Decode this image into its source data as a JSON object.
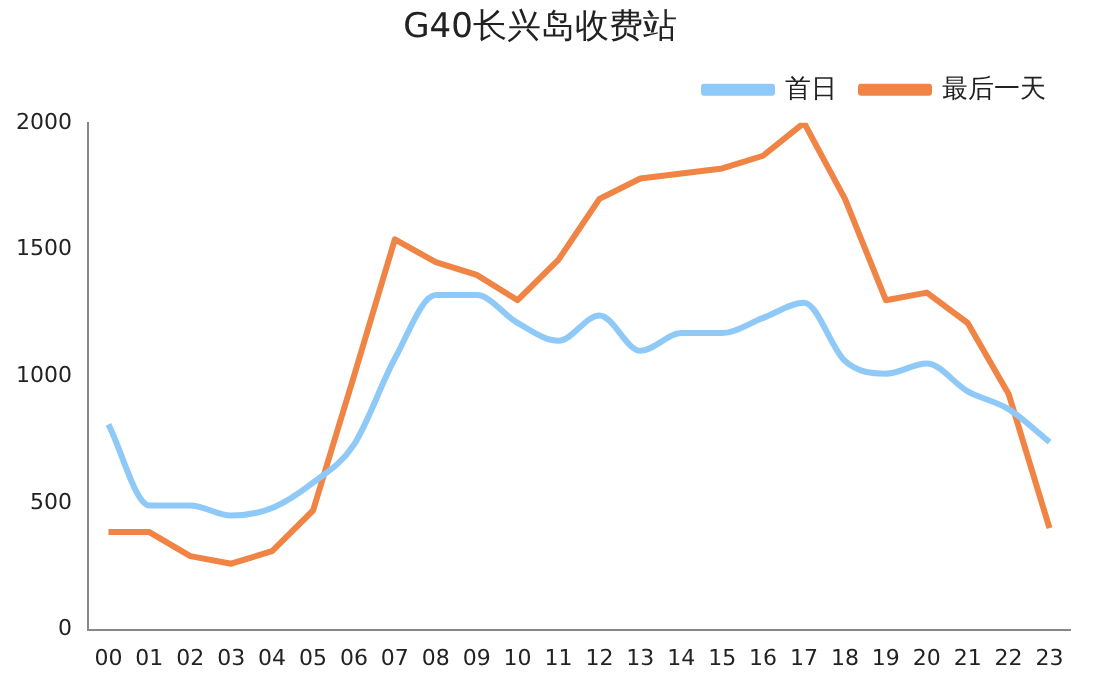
{
  "chart_data": {
    "type": "line",
    "title": "G40长兴岛收费站",
    "categories": [
      "00",
      "01",
      "02",
      "03",
      "04",
      "05",
      "06",
      "07",
      "08",
      "09",
      "10",
      "11",
      "12",
      "13",
      "14",
      "15",
      "16",
      "17",
      "18",
      "19",
      "20",
      "21",
      "22",
      "23"
    ],
    "series": [
      {
        "name": "首日",
        "color": "#8ec9f7",
        "values": [
          810,
          490,
          490,
          450,
          480,
          580,
          730,
          1070,
          1320,
          1320,
          1210,
          1140,
          1240,
          1100,
          1170,
          1170,
          1230,
          1290,
          1060,
          1010,
          1050,
          940,
          870,
          740
        ]
      },
      {
        "name": "最后一天",
        "color": "#f08445",
        "values": [
          385,
          385,
          290,
          260,
          310,
          470,
          1000,
          1540,
          1450,
          1400,
          1300,
          1460,
          1700,
          1780,
          1800,
          1820,
          1870,
          2000,
          1700,
          1300,
          1330,
          1210,
          930,
          400
        ]
      }
    ],
    "ylim": [
      0,
      2000
    ],
    "yticks": [
      0,
      500,
      1000,
      1500,
      2000
    ],
    "grid": false,
    "legend": "top right"
  }
}
